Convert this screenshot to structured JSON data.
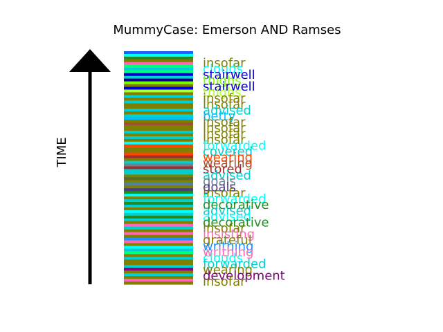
{
  "chart_data": {
    "type": "stacked-strip",
    "title": "MummyCase: Emerson AND Ramses",
    "ylabel": "TIME",
    "bands": [
      {
        "color": "#1f5fff"
      },
      {
        "color": "#00ffff"
      },
      {
        "color": "#228b22"
      },
      {
        "color": "#808000"
      },
      {
        "color": "#ff69b4"
      },
      {
        "color": "#00ff7f"
      },
      {
        "color": "#00ced1"
      },
      {
        "color": "#00ff7f"
      },
      {
        "color": "#0000cd"
      },
      {
        "color": "#00ced1"
      },
      {
        "color": "#000080"
      },
      {
        "color": "#7cfc00"
      },
      {
        "color": "#808000"
      },
      {
        "color": "#0000cd"
      },
      {
        "color": "#adff2f"
      },
      {
        "color": "#808000"
      },
      {
        "color": "#00ced1"
      },
      {
        "color": "#808000"
      },
      {
        "color": "#00ced1"
      },
      {
        "color": "#808000"
      },
      {
        "color": "#808000"
      },
      {
        "color": "#00ced1"
      },
      {
        "color": "#808000"
      },
      {
        "color": "#00ced1"
      },
      {
        "color": "#00bfff"
      },
      {
        "color": "#808000"
      },
      {
        "color": "#a0522d"
      },
      {
        "color": "#808000"
      },
      {
        "color": "#808000"
      },
      {
        "color": "#00ced1"
      },
      {
        "color": "#808000"
      },
      {
        "color": "#00ced1"
      },
      {
        "color": "#808000"
      },
      {
        "color": "#00ffff"
      },
      {
        "color": "#ff4500"
      },
      {
        "color": "#808000"
      },
      {
        "color": "#808000"
      },
      {
        "color": "#ff4500"
      },
      {
        "color": "#a52a2a"
      },
      {
        "color": "#808000"
      },
      {
        "color": "#00ced1"
      },
      {
        "color": "#708090"
      },
      {
        "color": "#a52a2a"
      },
      {
        "color": "#00ced1"
      },
      {
        "color": "#00ced1"
      },
      {
        "color": "#808000"
      },
      {
        "color": "#556b2f"
      },
      {
        "color": "#808000"
      },
      {
        "color": "#4682b4"
      },
      {
        "color": "#808000"
      },
      {
        "color": "#483d8b"
      },
      {
        "color": "#228b22"
      },
      {
        "color": "#00ffff"
      },
      {
        "color": "#808000"
      },
      {
        "color": "#00ced1"
      },
      {
        "color": "#228b22"
      },
      {
        "color": "#00ced1"
      },
      {
        "color": "#808000"
      },
      {
        "color": "#00ffff"
      },
      {
        "color": "#00ced1"
      },
      {
        "color": "#228b22"
      },
      {
        "color": "#00ced1"
      },
      {
        "color": "#808000"
      },
      {
        "color": "#ff69b4"
      },
      {
        "color": "#00ced1"
      },
      {
        "color": "#808000"
      },
      {
        "color": "#ff69b4"
      },
      {
        "color": "#808000"
      },
      {
        "color": "#1e90ff"
      },
      {
        "color": "#ff69b4"
      },
      {
        "color": "#808000"
      },
      {
        "color": "#00ffff"
      },
      {
        "color": "#00ced1"
      },
      {
        "color": "#00ff7f"
      },
      {
        "color": "#808000"
      },
      {
        "color": "#00ced1"
      },
      {
        "color": "#808000"
      },
      {
        "color": "#808000"
      },
      {
        "color": "#00ced1"
      },
      {
        "color": "#800080"
      },
      {
        "color": "#808000"
      },
      {
        "color": "#00ced1"
      },
      {
        "color": "#808000"
      },
      {
        "color": "#ff69b4"
      },
      {
        "color": "#808000"
      }
    ],
    "labels": [
      {
        "text": "insofar",
        "color": "#808000"
      },
      {
        "text": "clouds",
        "color": "#00ffff"
      },
      {
        "text": "stairwell",
        "color": "#0000cd"
      },
      {
        "text": "thighs",
        "color": "#7cfc00"
      },
      {
        "text": "stairwell",
        "color": "#0000cd"
      },
      {
        "text": "thighs",
        "color": "#adff2f"
      },
      {
        "text": "insofar",
        "color": "#808000"
      },
      {
        "text": "insofar",
        "color": "#808000"
      },
      {
        "text": "advised",
        "color": "#00ced1"
      },
      {
        "text": "betty",
        "color": "#00bfff"
      },
      {
        "text": "insofar",
        "color": "#808000"
      },
      {
        "text": "insofar",
        "color": "#808000"
      },
      {
        "text": "insofar",
        "color": "#808000"
      },
      {
        "text": "insofar",
        "color": "#808000"
      },
      {
        "text": "forwarded",
        "color": "#00ffff"
      },
      {
        "text": "covered",
        "color": "#00ced1"
      },
      {
        "text": "wearing",
        "color": "#ff4500"
      },
      {
        "text": "wearing",
        "color": "#a0522d"
      },
      {
        "text": "stored",
        "color": "#a52a2a"
      },
      {
        "text": "advised",
        "color": "#00ced1"
      },
      {
        "text": "goals",
        "color": "#708090"
      },
      {
        "text": "goals",
        "color": "#483d8b"
      },
      {
        "text": "insofar",
        "color": "#808000"
      },
      {
        "text": "forwarded",
        "color": "#00ffff"
      },
      {
        "text": "decorative",
        "color": "#228b22"
      },
      {
        "text": "advised",
        "color": "#00ced1"
      },
      {
        "text": "advised",
        "color": "#00ffff"
      },
      {
        "text": "decorative",
        "color": "#228b22"
      },
      {
        "text": "insofar",
        "color": "#808000"
      },
      {
        "text": "insisting",
        "color": "#ff69b4"
      },
      {
        "text": "grateful",
        "color": "#808000"
      },
      {
        "text": "writhing",
        "color": "#1e90ff"
      },
      {
        "text": "writhing",
        "color": "#ff69b4"
      },
      {
        "text": "clouds",
        "color": "#00ffff"
      },
      {
        "text": "forwarded",
        "color": "#00ced1"
      },
      {
        "text": "wearing",
        "color": "#808000"
      },
      {
        "text": "development",
        "color": "#800080"
      },
      {
        "text": "insofar",
        "color": "#808000"
      }
    ]
  }
}
